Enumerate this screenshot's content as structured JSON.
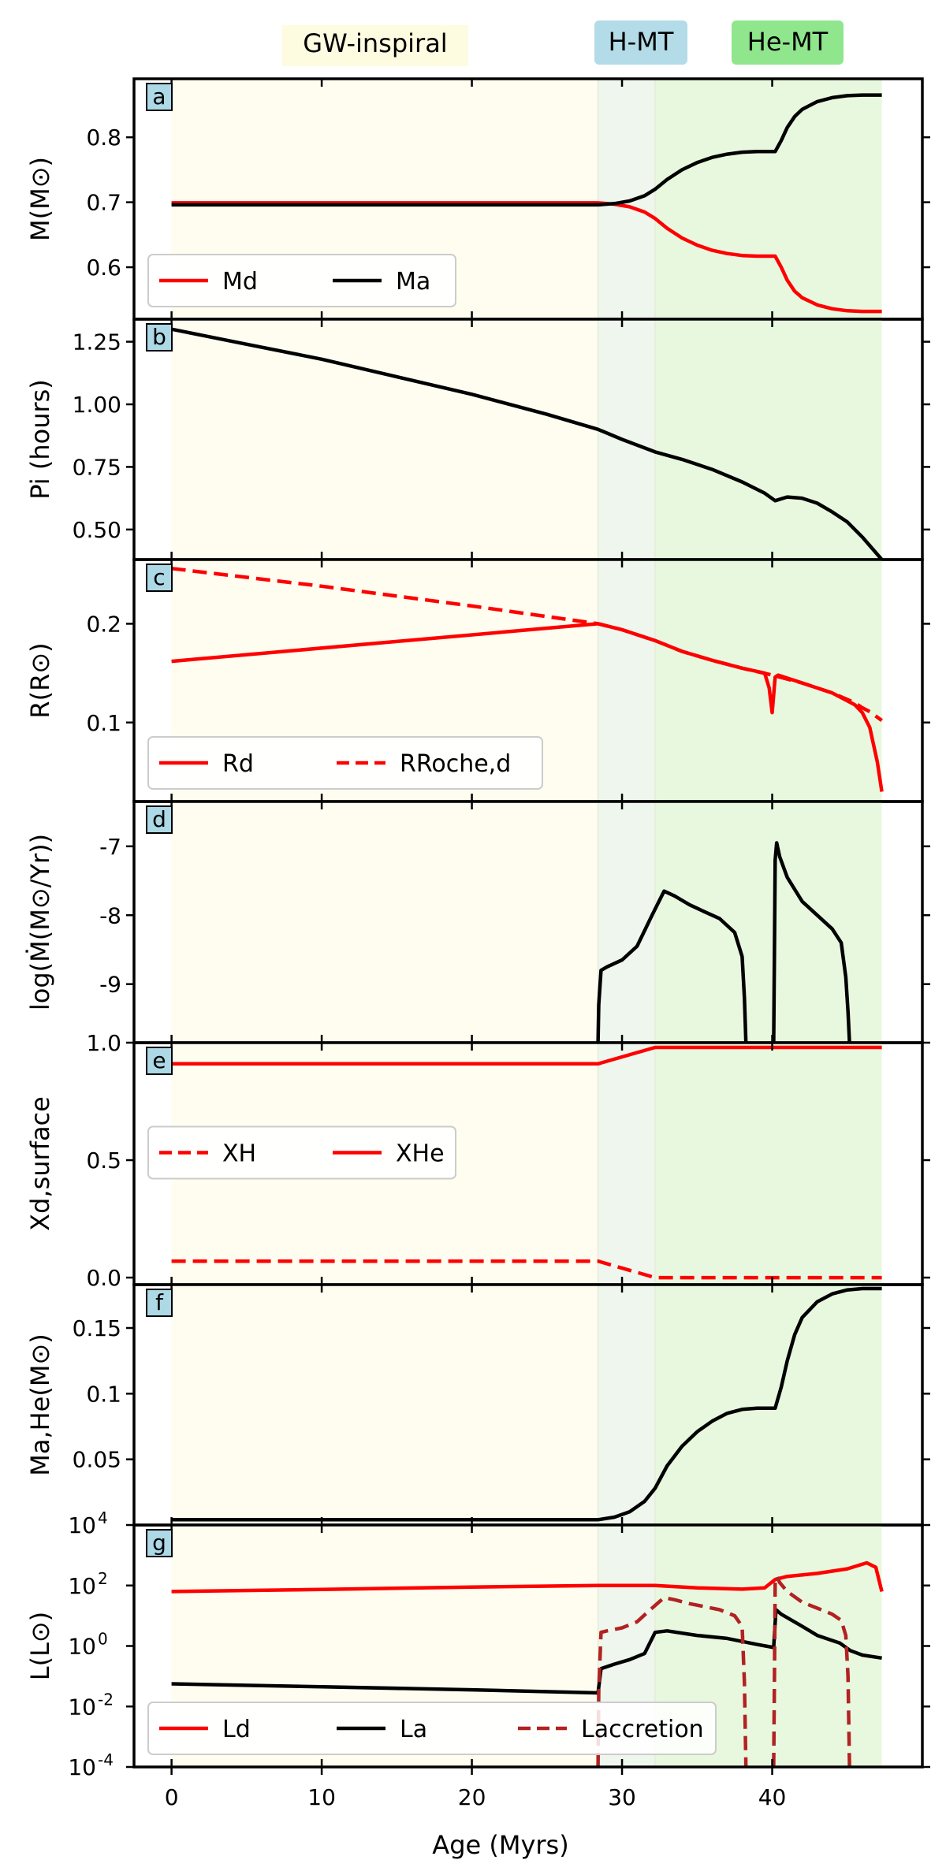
{
  "phase_labels": [
    {
      "name": "gw-inspiral",
      "text": "GW-inspiral",
      "color": "#fdfbe0"
    },
    {
      "name": "h-mt",
      "text": "H-MT",
      "color": "#b3dbe8"
    },
    {
      "name": "he-mt",
      "text": "He-MT",
      "color": "#8fe68c"
    }
  ],
  "phase_bands": [
    {
      "name": "gw-inspiral",
      "x": [
        0,
        28.4
      ],
      "color": "#fefdf0"
    },
    {
      "name": "h-mt",
      "x": [
        28.4,
        32.2
      ],
      "color": "#eef6ee"
    },
    {
      "name": "he-mt",
      "x": [
        32.2,
        47.3
      ],
      "color": "#e8f8df"
    }
  ],
  "xaxis": {
    "label": "Age (Myrs)",
    "xlim": [
      -2.5,
      50
    ],
    "ticks": [
      0,
      10,
      20,
      30,
      40
    ],
    "tick_labels": [
      "0",
      "10",
      "20",
      "30",
      "40"
    ]
  },
  "colors": {
    "red": "#ff0000",
    "black": "#000000",
    "brown": "#b22222"
  },
  "chart_data": [
    {
      "id": "a",
      "letter": "a",
      "type": "line",
      "ylabel": "M(M⊙)",
      "ylim": [
        0.52,
        0.89
      ],
      "yticks": [
        0.6,
        0.7,
        0.8
      ],
      "ytick_labels": [
        "0.6",
        "0.7",
        "0.8"
      ],
      "legend": {
        "position": "lower-left",
        "entries": [
          {
            "label": "Md",
            "color": "#ff0000",
            "dash": "solid"
          },
          {
            "label": "Ma",
            "color": "#000000",
            "dash": "solid"
          }
        ]
      },
      "series": [
        {
          "name": "Md",
          "color": "#ff0000",
          "dash": "solid",
          "x": [
            0,
            28.4,
            29.5,
            30.5,
            31.5,
            32.2,
            33,
            34,
            35,
            36,
            37,
            38,
            39,
            40.2,
            40.6,
            41,
            41.5,
            42,
            43,
            44,
            45,
            46,
            47.3
          ],
          "y": [
            0.699,
            0.699,
            0.697,
            0.693,
            0.685,
            0.675,
            0.66,
            0.645,
            0.634,
            0.626,
            0.621,
            0.618,
            0.617,
            0.617,
            0.6,
            0.58,
            0.563,
            0.553,
            0.542,
            0.536,
            0.533,
            0.532,
            0.532
          ]
        },
        {
          "name": "Ma",
          "color": "#000000",
          "dash": "solid",
          "x": [
            0,
            28.4,
            29.5,
            30.5,
            31.5,
            32.2,
            33,
            34,
            35,
            36,
            37,
            38,
            39,
            40.2,
            40.6,
            41,
            41.5,
            42,
            43,
            44,
            45,
            46,
            47.3
          ],
          "y": [
            0.696,
            0.696,
            0.698,
            0.702,
            0.71,
            0.72,
            0.735,
            0.75,
            0.761,
            0.769,
            0.774,
            0.777,
            0.778,
            0.778,
            0.795,
            0.815,
            0.832,
            0.843,
            0.855,
            0.861,
            0.864,
            0.865,
            0.865
          ]
        }
      ]
    },
    {
      "id": "b",
      "letter": "b",
      "type": "line",
      "ylabel": "Pi (hours)",
      "ylim": [
        0.38,
        1.34
      ],
      "yticks": [
        0.5,
        0.75,
        1.0,
        1.25
      ],
      "ytick_labels": [
        "0.50",
        "0.75",
        "1.00",
        "1.25"
      ],
      "legend": null,
      "series": [
        {
          "name": "Pi",
          "color": "#000000",
          "dash": "solid",
          "x": [
            0,
            5,
            10,
            15,
            20,
            25,
            28.4,
            30,
            32.2,
            34,
            36,
            38,
            39.5,
            40.2,
            41,
            42,
            43,
            44,
            45,
            46,
            47.3
          ],
          "y": [
            1.3,
            1.24,
            1.18,
            1.11,
            1.04,
            0.96,
            0.9,
            0.86,
            0.81,
            0.78,
            0.74,
            0.69,
            0.645,
            0.615,
            0.63,
            0.625,
            0.605,
            0.57,
            0.53,
            0.47,
            0.38
          ]
        }
      ]
    },
    {
      "id": "c",
      "letter": "c",
      "type": "line",
      "ylabel": "R(R⊙)",
      "ylim": [
        0.02,
        0.265
      ],
      "yticks": [
        0.1,
        0.2
      ],
      "ytick_labels": [
        "0.1",
        "0.2"
      ],
      "legend": {
        "position": "lower-left",
        "entries": [
          {
            "label": "Rd",
            "color": "#ff0000",
            "dash": "solid"
          },
          {
            "label": "RRoche,d",
            "color": "#ff0000",
            "dash": "dashed"
          }
        ]
      },
      "series": [
        {
          "name": "Rd",
          "color": "#ff0000",
          "dash": "solid",
          "x": [
            0,
            28.4,
            30,
            32.2,
            34,
            36,
            38,
            39.5,
            39.8,
            40.0,
            40.2,
            40.4,
            42,
            44,
            45.5,
            46,
            46.5,
            47.0,
            47.3
          ],
          "y": [
            0.162,
            0.2,
            0.194,
            0.183,
            0.172,
            0.163,
            0.155,
            0.15,
            0.135,
            0.11,
            0.146,
            0.148,
            0.14,
            0.13,
            0.118,
            0.11,
            0.095,
            0.06,
            0.03
          ]
        },
        {
          "name": "RRoche,d",
          "color": "#ff0000",
          "dash": "dashed",
          "x": [
            0,
            10,
            20,
            28.4,
            30,
            32.2,
            34,
            36,
            38,
            40,
            42,
            44,
            45.5,
            46,
            46.5,
            47.3
          ],
          "y": [
            0.256,
            0.238,
            0.218,
            0.2,
            0.194,
            0.183,
            0.172,
            0.163,
            0.155,
            0.148,
            0.14,
            0.13,
            0.12,
            0.115,
            0.111,
            0.102
          ]
        }
      ]
    },
    {
      "id": "d",
      "letter": "d",
      "type": "line",
      "ylabel": "log(Ṁ(M⊙/Yr))",
      "ylim": [
        -9.85,
        -6.35
      ],
      "yticks": [
        -9,
        -8,
        -7
      ],
      "ytick_labels": [
        "-9",
        "-8",
        "-7"
      ],
      "legend": null,
      "series": [
        {
          "name": "mdot-h",
          "color": "#000000",
          "dash": "solid",
          "x": [
            28.4,
            28.45,
            28.6,
            29,
            30,
            31,
            32,
            32.8,
            33.5,
            34.5,
            35.5,
            36.5,
            37.5,
            38.0,
            38.15,
            38.25
          ],
          "y": [
            -9.85,
            -9.3,
            -8.8,
            -8.75,
            -8.65,
            -8.45,
            -8.0,
            -7.65,
            -7.72,
            -7.85,
            -7.95,
            -8.05,
            -8.25,
            -8.6,
            -9.2,
            -9.85
          ]
        },
        {
          "name": "mdot-he",
          "color": "#000000",
          "dash": "solid",
          "x": [
            40.1,
            40.15,
            40.2,
            40.3,
            40.5,
            41,
            42,
            43,
            44,
            44.6,
            44.9,
            45.05,
            45.15
          ],
          "y": [
            -9.85,
            -8.5,
            -7.2,
            -6.95,
            -7.15,
            -7.45,
            -7.8,
            -8.0,
            -8.2,
            -8.4,
            -8.9,
            -9.4,
            -9.85
          ]
        }
      ]
    },
    {
      "id": "e",
      "letter": "e",
      "type": "line",
      "ylabel": "Xd,surface",
      "ylim": [
        -0.03,
        1.0
      ],
      "yticks": [
        0.0,
        0.5,
        1.0
      ],
      "ytick_labels": [
        "0.0",
        "0.5",
        "1.0"
      ],
      "legend": {
        "position": "center-left",
        "entries": [
          {
            "label": "XH",
            "color": "#ff0000",
            "dash": "dashed"
          },
          {
            "label": "XHe",
            "color": "#ff0000",
            "dash": "solid"
          }
        ]
      },
      "series": [
        {
          "name": "XH",
          "color": "#ff0000",
          "dash": "dashed",
          "x": [
            0,
            28.4,
            32.2,
            47.3
          ],
          "y": [
            0.07,
            0.07,
            0.0,
            0.0
          ]
        },
        {
          "name": "XHe",
          "color": "#ff0000",
          "dash": "solid",
          "x": [
            0,
            28.4,
            32.2,
            47.3
          ],
          "y": [
            0.91,
            0.91,
            0.98,
            0.98
          ]
        }
      ]
    },
    {
      "id": "f",
      "letter": "f",
      "type": "line",
      "ylabel": "Ma,He(M⊙)",
      "ylim": [
        0.0,
        0.183
      ],
      "yticks": [
        0.05,
        0.1,
        0.15
      ],
      "ytick_labels": [
        "0.05",
        "0.1",
        "0.15"
      ],
      "legend": null,
      "series": [
        {
          "name": "Ma,He",
          "color": "#000000",
          "dash": "solid",
          "x": [
            0,
            28.4,
            29.5,
            30.5,
            31.5,
            32.2,
            33,
            34,
            35,
            36,
            37,
            38,
            39,
            40.2,
            40.6,
            41,
            41.5,
            42,
            43,
            44,
            45,
            46,
            47.3
          ],
          "y": [
            0.004,
            0.004,
            0.006,
            0.01,
            0.018,
            0.028,
            0.045,
            0.06,
            0.071,
            0.079,
            0.085,
            0.088,
            0.089,
            0.089,
            0.105,
            0.125,
            0.145,
            0.158,
            0.17,
            0.176,
            0.179,
            0.18,
            0.18
          ]
        }
      ]
    },
    {
      "id": "g",
      "letter": "g",
      "type": "line",
      "yscale": "log",
      "ylabel": "L(L⊙)",
      "ylim": [
        -4,
        4
      ],
      "yticks": [
        -4,
        -2,
        0,
        2,
        4
      ],
      "ytick_labels": [
        "10",
        "10",
        "10",
        "10",
        "10"
      ],
      "ytick_exponents": [
        "-4",
        "-2",
        "0",
        "2",
        "4"
      ],
      "legend": {
        "position": "lower-left",
        "entries": [
          {
            "label": "Ld",
            "color": "#ff0000",
            "dash": "solid"
          },
          {
            "label": "La",
            "color": "#000000",
            "dash": "solid"
          },
          {
            "label": "Laccretion",
            "color": "#b22222",
            "dash": "dashed"
          }
        ]
      },
      "series": [
        {
          "name": "Ld",
          "color": "#ff0000",
          "dash": "solid",
          "x": [
            0,
            10,
            20,
            28.4,
            32.2,
            35,
            38,
            39.5,
            40.2,
            41,
            43,
            45,
            46.3,
            46.9,
            47.3
          ],
          "y": [
            1.8,
            1.87,
            1.95,
            2.0,
            2.0,
            1.92,
            1.88,
            1.92,
            2.2,
            2.3,
            2.4,
            2.55,
            2.75,
            2.6,
            1.8
          ]
        },
        {
          "name": "La",
          "color": "#000000",
          "dash": "solid",
          "x": [
            0,
            10,
            20,
            28.4,
            28.6,
            29.5,
            30.5,
            31.5,
            32.2,
            33,
            35,
            37,
            39,
            40.1,
            40.25,
            40.6,
            42,
            43,
            44.5,
            45.2,
            46,
            47.3
          ],
          "y": [
            -1.25,
            -1.35,
            -1.45,
            -1.55,
            -0.75,
            -0.6,
            -0.45,
            -0.25,
            0.45,
            0.5,
            0.35,
            0.25,
            0.05,
            -0.05,
            1.2,
            1.05,
            0.65,
            0.35,
            0.1,
            -0.15,
            -0.3,
            -0.4
          ]
        },
        {
          "name": "Laccretion-h",
          "color": "#b22222",
          "dash": "dashed",
          "x": [
            28.4,
            28.45,
            28.6,
            29,
            30,
            31,
            32,
            32.8,
            33.5,
            34.5,
            35.5,
            36.5,
            37.5,
            38.0,
            38.15,
            38.25
          ],
          "y": [
            -4.0,
            -1.5,
            0.45,
            0.5,
            0.6,
            0.8,
            1.25,
            1.6,
            1.53,
            1.4,
            1.3,
            1.2,
            1.0,
            0.65,
            -1.2,
            -4.0
          ]
        },
        {
          "name": "Laccretion-he",
          "color": "#b22222",
          "dash": "dashed",
          "x": [
            40.1,
            40.15,
            40.2,
            40.3,
            40.5,
            41,
            42,
            43,
            44,
            44.6,
            44.9,
            45.05,
            45.15
          ],
          "y": [
            -4.0,
            -1.0,
            2.05,
            2.3,
            2.1,
            1.8,
            1.45,
            1.25,
            1.05,
            0.85,
            0.35,
            -1.0,
            -4.0
          ]
        }
      ]
    }
  ]
}
